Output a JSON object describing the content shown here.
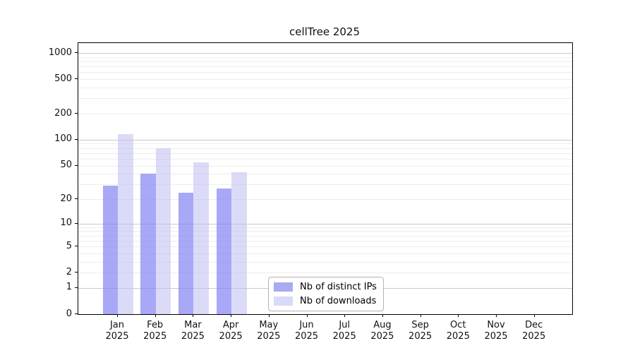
{
  "chart_data": {
    "type": "bar",
    "title": "cellTree 2025",
    "categories": [
      "Jan",
      "Feb",
      "Mar",
      "Apr",
      "May",
      "Jun",
      "Jul",
      "Aug",
      "Sep",
      "Oct",
      "Nov",
      "Dec"
    ],
    "year_label": "2025",
    "series": [
      {
        "name": "Nb of distinct IPs",
        "values": [
          29,
          40,
          24,
          27,
          0,
          0,
          0,
          0,
          0,
          0,
          0,
          0
        ],
        "bar_color": "rgba(134,134,243,0.72)",
        "legend_color": "#a9a9f4"
      },
      {
        "name": "Nb of downloads",
        "values": [
          115,
          79,
          54,
          42,
          0,
          0,
          0,
          0,
          0,
          0,
          0,
          0
        ],
        "bar_color": "rgba(190,190,242,0.55)",
        "legend_color": "#d9d9f9"
      }
    ],
    "y_scale": "log10(value+1)",
    "ylim": [
      0,
      1300
    ],
    "y_tick_values": [
      0,
      1,
      2,
      5,
      10,
      20,
      50,
      100,
      200,
      500,
      1000
    ],
    "y_major_gridlines": [
      1,
      10,
      100,
      1000
    ],
    "y_minor_gridlines": [
      2,
      3,
      4,
      5,
      6,
      7,
      8,
      9,
      20,
      30,
      40,
      50,
      60,
      70,
      80,
      90,
      200,
      300,
      400,
      500,
      600,
      700,
      800,
      900
    ],
    "grid": true,
    "legend_position": "lower center",
    "xlabel": "",
    "ylabel": ""
  },
  "colors": {
    "background": "#ffffff",
    "grid_major": "#c9c9c9",
    "grid_minor": "#ededed",
    "spine": "#000000",
    "text": "#111111",
    "legend_border": "#b3b3b3"
  }
}
